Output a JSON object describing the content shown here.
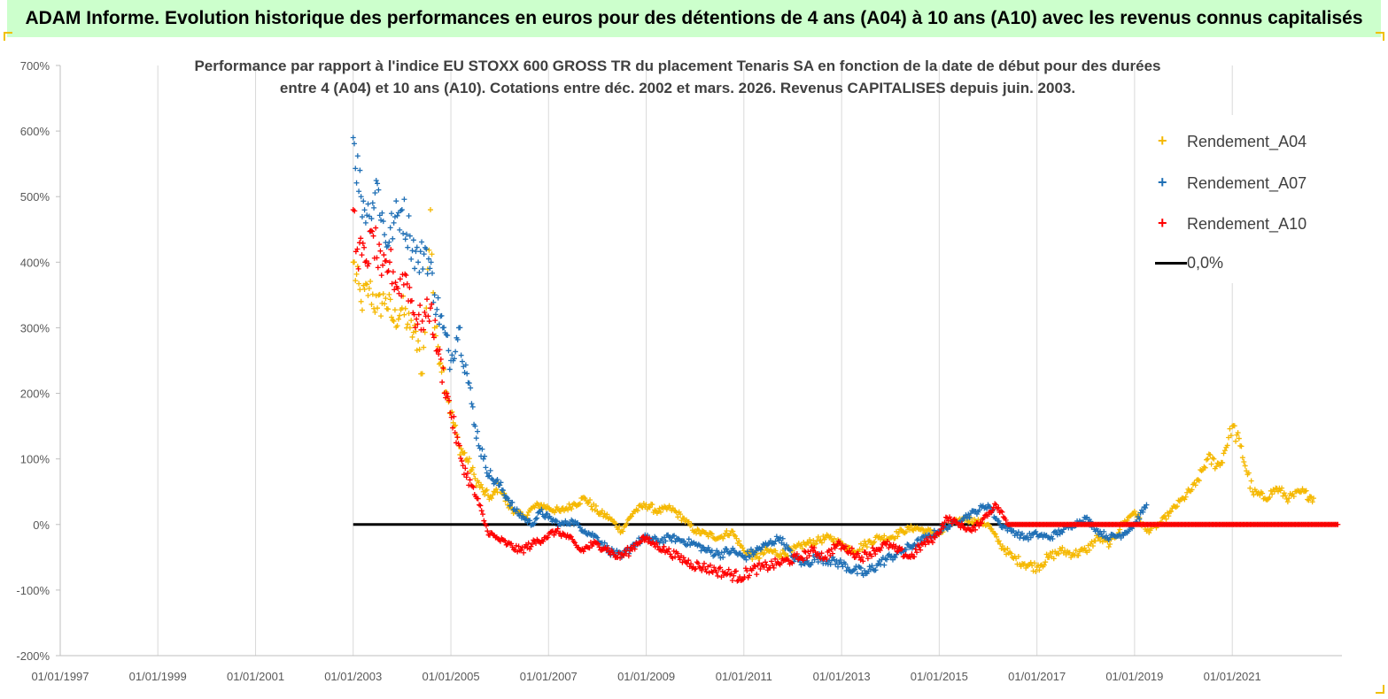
{
  "header": {
    "banner": "ADAM Informe. Evolution historique des performances en euros pour des détentions de 4 ans (A04) à 10 ans (A10) avec les revenus connus capitalisés"
  },
  "chart_data": {
    "type": "scatter",
    "title_line1": "Performance par rapport à l'indice EU STOXX 600 GROSS TR  du placement Tenaris SA en fonction de la date de début pour des durées",
    "title_line2": "entre 4 (A04) et 10 ans (A10). Cotations entre déc. 2002 et mars. 2026. Revenus CAPITALISES depuis juin. 2003.",
    "xlabel": "",
    "ylabel": "",
    "ylim": [
      -200,
      700
    ],
    "y_ticks": [
      "700%",
      "600%",
      "500%",
      "400%",
      "300%",
      "200%",
      "100%",
      "0%",
      "-100%",
      "-200%"
    ],
    "x_ticks": [
      "01/01/1997",
      "01/01/1999",
      "01/01/2001",
      "01/01/2003",
      "01/01/2005",
      "01/01/2007",
      "01/01/2009",
      "01/01/2011",
      "01/01/2013",
      "01/01/2015",
      "01/01/2017",
      "01/01/2019",
      "01/01/2021"
    ],
    "xlim": [
      "1997-01-01",
      "2023-04-01"
    ],
    "grid": "vertical",
    "legend_position": "top-right",
    "series": [
      {
        "name": "Rendement_A04",
        "color": "#f5b800",
        "marker": "plus",
        "points": [
          [
            "2003-01-01",
            400
          ],
          [
            "2003-03-01",
            340
          ],
          [
            "2003-05-01",
            360
          ],
          [
            "2003-07-01",
            330
          ],
          [
            "2003-09-01",
            345
          ],
          [
            "2003-11-01",
            310
          ],
          [
            "2004-01-01",
            330
          ],
          [
            "2004-03-01",
            300
          ],
          [
            "2004-05-01",
            280
          ],
          [
            "2004-06-01",
            230
          ],
          [
            "2004-07-01",
            330
          ],
          [
            "2004-08-01",
            480
          ],
          [
            "2004-09-01",
            300
          ],
          [
            "2004-11-01",
            240
          ],
          [
            "2005-01-01",
            170
          ],
          [
            "2005-03-01",
            120
          ],
          [
            "2005-05-01",
            100
          ],
          [
            "2005-07-01",
            70
          ],
          [
            "2005-09-01",
            50
          ],
          [
            "2005-11-01",
            40
          ],
          [
            "2006-01-01",
            60
          ],
          [
            "2006-03-01",
            30
          ],
          [
            "2006-05-01",
            20
          ],
          [
            "2006-07-01",
            10
          ],
          [
            "2006-09-01",
            25
          ],
          [
            "2006-11-01",
            30
          ],
          [
            "2007-01-01",
            25
          ],
          [
            "2007-04-01",
            20
          ],
          [
            "2007-07-01",
            30
          ],
          [
            "2007-10-01",
            40
          ],
          [
            "2008-01-01",
            20
          ],
          [
            "2008-04-01",
            10
          ],
          [
            "2008-07-01",
            -10
          ],
          [
            "2008-10-01",
            20
          ],
          [
            "2009-01-01",
            30
          ],
          [
            "2009-04-01",
            20
          ],
          [
            "2009-07-01",
            25
          ],
          [
            "2009-10-01",
            10
          ],
          [
            "2010-01-01",
            -10
          ],
          [
            "2010-04-01",
            -15
          ],
          [
            "2010-07-01",
            -20
          ],
          [
            "2010-10-01",
            -10
          ],
          [
            "2011-01-01",
            -40
          ],
          [
            "2011-04-01",
            -50
          ],
          [
            "2011-07-01",
            -40
          ],
          [
            "2011-10-01",
            -45
          ],
          [
            "2012-01-01",
            -40
          ],
          [
            "2012-04-01",
            -30
          ],
          [
            "2012-07-01",
            -25
          ],
          [
            "2012-10-01",
            -20
          ],
          [
            "2013-01-01",
            -30
          ],
          [
            "2013-04-01",
            -40
          ],
          [
            "2013-07-01",
            -30
          ],
          [
            "2013-10-01",
            -20
          ],
          [
            "2014-01-01",
            -20
          ],
          [
            "2014-04-01",
            -10
          ],
          [
            "2014-07-01",
            -5
          ],
          [
            "2014-10-01",
            -10
          ],
          [
            "2015-01-01",
            -15
          ],
          [
            "2015-04-01",
            0
          ],
          [
            "2015-07-01",
            10
          ],
          [
            "2015-10-01",
            5
          ],
          [
            "2016-01-01",
            0
          ],
          [
            "2016-04-01",
            -30
          ],
          [
            "2016-07-01",
            -50
          ],
          [
            "2016-10-01",
            -60
          ],
          [
            "2017-01-01",
            -65
          ],
          [
            "2017-04-01",
            -50
          ],
          [
            "2017-07-01",
            -40
          ],
          [
            "2017-10-01",
            -45
          ],
          [
            "2018-01-01",
            -40
          ],
          [
            "2018-04-01",
            -20
          ],
          [
            "2018-07-01",
            -30
          ],
          [
            "2018-10-01",
            0
          ],
          [
            "2019-01-01",
            20
          ],
          [
            "2019-04-01",
            -10
          ],
          [
            "2019-07-01",
            0
          ],
          [
            "2019-10-01",
            20
          ],
          [
            "2020-01-01",
            40
          ],
          [
            "2020-04-01",
            60
          ],
          [
            "2020-07-01",
            100
          ],
          [
            "2020-10-01",
            90
          ],
          [
            "2021-01-01",
            150
          ],
          [
            "2021-03-01",
            120
          ],
          [
            "2021-06-01",
            50
          ],
          [
            "2021-09-01",
            40
          ],
          [
            "2021-12-01",
            55
          ],
          [
            "2022-03-01",
            40
          ],
          [
            "2022-06-01",
            50
          ],
          [
            "2022-09-01",
            40
          ]
        ]
      },
      {
        "name": "Rendement_A07",
        "color": "#1f6fb5",
        "marker": "plus",
        "points": [
          [
            "2003-01-01",
            590
          ],
          [
            "2003-03-01",
            500
          ],
          [
            "2003-05-01",
            470
          ],
          [
            "2003-07-01",
            520
          ],
          [
            "2003-09-01",
            430
          ],
          [
            "2003-11-01",
            460
          ],
          [
            "2004-01-01",
            480
          ],
          [
            "2004-03-01",
            440
          ],
          [
            "2004-05-01",
            400
          ],
          [
            "2004-07-01",
            420
          ],
          [
            "2004-09-01",
            350
          ],
          [
            "2004-11-01",
            300
          ],
          [
            "2005-01-01",
            250
          ],
          [
            "2005-03-01",
            300
          ],
          [
            "2005-05-01",
            230
          ],
          [
            "2005-07-01",
            150
          ],
          [
            "2005-09-01",
            100
          ],
          [
            "2005-11-01",
            70
          ],
          [
            "2006-01-01",
            60
          ],
          [
            "2006-03-01",
            40
          ],
          [
            "2006-05-01",
            20
          ],
          [
            "2006-07-01",
            10
          ],
          [
            "2006-09-01",
            0
          ],
          [
            "2006-11-01",
            20
          ],
          [
            "2007-01-01",
            10
          ],
          [
            "2007-04-01",
            0
          ],
          [
            "2007-07-01",
            5
          ],
          [
            "2007-10-01",
            -10
          ],
          [
            "2008-01-01",
            -20
          ],
          [
            "2008-04-01",
            -40
          ],
          [
            "2008-07-01",
            -50
          ],
          [
            "2008-10-01",
            -30
          ],
          [
            "2009-01-01",
            -20
          ],
          [
            "2009-04-01",
            -25
          ],
          [
            "2009-07-01",
            -20
          ],
          [
            "2009-10-01",
            -25
          ],
          [
            "2010-01-01",
            -30
          ],
          [
            "2010-04-01",
            -40
          ],
          [
            "2010-07-01",
            -45
          ],
          [
            "2010-10-01",
            -40
          ],
          [
            "2011-01-01",
            -50
          ],
          [
            "2011-04-01",
            -40
          ],
          [
            "2011-07-01",
            -30
          ],
          [
            "2011-10-01",
            -20
          ],
          [
            "2012-01-01",
            -50
          ],
          [
            "2012-04-01",
            -60
          ],
          [
            "2012-07-01",
            -50
          ],
          [
            "2012-10-01",
            -55
          ],
          [
            "2013-01-01",
            -60
          ],
          [
            "2013-04-01",
            -70
          ],
          [
            "2013-07-01",
            -75
          ],
          [
            "2013-10-01",
            -60
          ],
          [
            "2014-01-01",
            -50
          ],
          [
            "2014-04-01",
            -40
          ],
          [
            "2014-07-01",
            -30
          ],
          [
            "2014-10-01",
            -20
          ],
          [
            "2015-01-01",
            -10
          ],
          [
            "2015-04-01",
            0
          ],
          [
            "2015-07-01",
            10
          ],
          [
            "2015-10-01",
            20
          ],
          [
            "2016-01-01",
            30
          ],
          [
            "2016-04-01",
            0
          ],
          [
            "2016-07-01",
            -10
          ],
          [
            "2016-10-01",
            -20
          ],
          [
            "2017-01-01",
            -15
          ],
          [
            "2017-04-01",
            -20
          ],
          [
            "2017-07-01",
            -10
          ],
          [
            "2017-10-01",
            0
          ],
          [
            "2018-01-01",
            10
          ],
          [
            "2018-04-01",
            -10
          ],
          [
            "2018-07-01",
            -20
          ],
          [
            "2018-10-01",
            -15
          ],
          [
            "2019-01-01",
            0
          ],
          [
            "2019-04-01",
            30
          ]
        ]
      },
      {
        "name": "Rendement_A10",
        "color": "#ff0000",
        "marker": "plus",
        "points": [
          [
            "2003-01-01",
            480
          ],
          [
            "2003-02-01",
            420
          ],
          [
            "2003-04-01",
            400
          ],
          [
            "2003-06-01",
            440
          ],
          [
            "2003-08-01",
            380
          ],
          [
            "2003-10-01",
            400
          ],
          [
            "2003-12-01",
            360
          ],
          [
            "2004-02-01",
            380
          ],
          [
            "2004-04-01",
            320
          ],
          [
            "2004-06-01",
            310
          ],
          [
            "2004-08-01",
            330
          ],
          [
            "2004-10-01",
            260
          ],
          [
            "2004-12-01",
            200
          ],
          [
            "2005-02-01",
            140
          ],
          [
            "2005-04-01",
            90
          ],
          [
            "2005-06-01",
            60
          ],
          [
            "2005-08-01",
            30
          ],
          [
            "2005-10-01",
            -10
          ],
          [
            "2005-12-01",
            -20
          ],
          [
            "2006-03-01",
            -30
          ],
          [
            "2006-06-01",
            -40
          ],
          [
            "2006-09-01",
            -30
          ],
          [
            "2006-12-01",
            -20
          ],
          [
            "2007-03-01",
            -10
          ],
          [
            "2007-06-01",
            -20
          ],
          [
            "2007-09-01",
            -40
          ],
          [
            "2007-12-01",
            -30
          ],
          [
            "2008-03-01",
            -35
          ],
          [
            "2008-06-01",
            -50
          ],
          [
            "2008-09-01",
            -40
          ],
          [
            "2008-12-01",
            -20
          ],
          [
            "2009-03-01",
            -30
          ],
          [
            "2009-06-01",
            -40
          ],
          [
            "2009-09-01",
            -50
          ],
          [
            "2009-12-01",
            -60
          ],
          [
            "2010-03-01",
            -65
          ],
          [
            "2010-06-01",
            -70
          ],
          [
            "2010-09-01",
            -75
          ],
          [
            "2010-12-01",
            -80
          ],
          [
            "2011-03-01",
            -70
          ],
          [
            "2011-06-01",
            -65
          ],
          [
            "2011-09-01",
            -60
          ],
          [
            "2011-12-01",
            -55
          ],
          [
            "2012-03-01",
            -50
          ],
          [
            "2012-06-01",
            -40
          ],
          [
            "2012-09-01",
            -50
          ],
          [
            "2012-12-01",
            -30
          ],
          [
            "2013-03-01",
            -40
          ],
          [
            "2013-06-01",
            -50
          ],
          [
            "2013-09-01",
            -40
          ],
          [
            "2013-12-01",
            -30
          ],
          [
            "2014-03-01",
            -40
          ],
          [
            "2014-06-01",
            -50
          ],
          [
            "2014-09-01",
            -30
          ],
          [
            "2014-12-01",
            -20
          ],
          [
            "2015-03-01",
            10
          ],
          [
            "2015-06-01",
            0
          ],
          [
            "2015-09-01",
            -10
          ],
          [
            "2015-12-01",
            10
          ],
          [
            "2016-03-01",
            30
          ],
          [
            "2016-06-01",
            0
          ],
          [
            "2017-01-01",
            0
          ],
          [
            "2018-01-01",
            0
          ],
          [
            "2019-01-01",
            0
          ],
          [
            "2020-01-01",
            0
          ],
          [
            "2021-01-01",
            0
          ],
          [
            "2022-01-01",
            0
          ],
          [
            "2023-03-01",
            0
          ]
        ]
      },
      {
        "name": "0,0%",
        "color": "#000000",
        "marker": "line",
        "points": [
          [
            "2003-01-01",
            0
          ],
          [
            "2023-03-01",
            0
          ]
        ]
      }
    ]
  }
}
